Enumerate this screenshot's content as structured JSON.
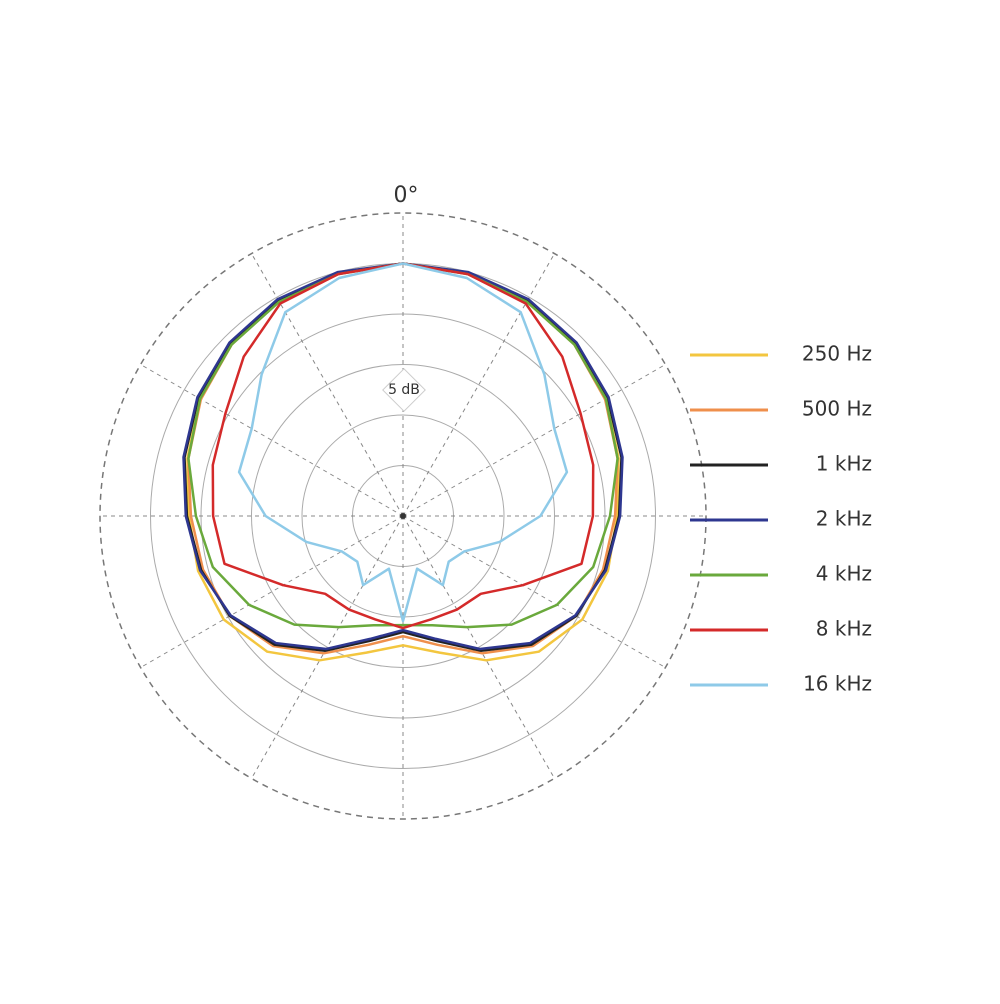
{
  "chart_data": {
    "type": "polar",
    "theta_label": "0°",
    "scale_label": "5 dB",
    "theta": [
      0,
      15,
      30,
      45,
      60,
      75,
      90,
      105,
      120,
      135,
      150,
      165,
      180,
      195,
      210,
      225,
      240,
      255,
      270,
      285,
      300,
      315,
      330,
      345
    ],
    "thetaticks": [
      0,
      30,
      60,
      90,
      120,
      150,
      180,
      210,
      240,
      270,
      300,
      330
    ],
    "rlim": [
      -25,
      5
    ],
    "rticks": [
      -20,
      -15,
      -10,
      -5,
      0,
      5
    ],
    "series": [
      {
        "name": "250 Hz",
        "color": "#f3c63f",
        "values": [
          0,
          -0.1,
          -0.4,
          -1.0,
          -1.8,
          -2.9,
          -3.8,
          -4.0,
          -4.5,
          -6.0,
          -8.5,
          -11.0,
          -12.2,
          -11.0,
          -8.5,
          -6.0,
          -4.5,
          -4.0,
          -3.8,
          -2.9,
          -1.8,
          -1.0,
          -0.4,
          -0.1
        ]
      },
      {
        "name": "500 Hz",
        "color": "#ef8f4c",
        "values": [
          0,
          -0.1,
          -0.4,
          -1.0,
          -1.9,
          -3.0,
          -4.0,
          -4.5,
          -5.2,
          -6.8,
          -9.3,
          -11.8,
          -13.1,
          -11.8,
          -9.3,
          -6.8,
          -5.2,
          -4.5,
          -4.0,
          -3.0,
          -1.9,
          -1.0,
          -0.4,
          -0.1
        ]
      },
      {
        "name": "1 kHz",
        "color": "#222222",
        "values": [
          0,
          -0.1,
          -0.3,
          -0.8,
          -1.6,
          -2.6,
          -3.6,
          -4.3,
          -5.2,
          -7.0,
          -9.6,
          -12.2,
          -13.5,
          -12.2,
          -9.6,
          -7.0,
          -5.2,
          -4.3,
          -3.6,
          -2.6,
          -1.6,
          -0.8,
          -0.3,
          -0.1
        ]
      },
      {
        "name": "2 kHz",
        "color": "#2e3790",
        "values": [
          0,
          0,
          -0.2,
          -0.7,
          -1.5,
          -2.5,
          -3.5,
          -4.2,
          -5.3,
          -7.2,
          -9.8,
          -12.4,
          -13.7,
          -12.4,
          -9.8,
          -7.2,
          -5.3,
          -4.2,
          -3.5,
          -2.5,
          -1.5,
          -0.7,
          -0.2,
          0
        ]
      },
      {
        "name": "4 kHz",
        "color": "#6aa93c",
        "values": [
          0,
          -0.2,
          -0.5,
          -1.0,
          -1.8,
          -3.0,
          -4.5,
          -5.5,
          -7.4,
          -9.8,
          -12.3,
          -13.8,
          -14.2,
          -13.8,
          -12.3,
          -9.8,
          -7.4,
          -5.5,
          -4.5,
          -3.0,
          -1.8,
          -1.0,
          -0.5,
          -0.2
        ]
      },
      {
        "name": "8 kHz",
        "color": "#d42a2a",
        "values": [
          0,
          -0.2,
          -0.7,
          -2.7,
          -4.7,
          -5.5,
          -6.2,
          -6.7,
          -11.3,
          -14.1,
          -14.3,
          -14.4,
          -13.9,
          -14.4,
          -14.3,
          -14.1,
          -11.3,
          -6.7,
          -6.2,
          -5.5,
          -4.7,
          -2.7,
          -0.7,
          -0.2
        ]
      },
      {
        "name": "16 kHz",
        "color": "#8ecae8",
        "values": [
          0,
          -0.6,
          -1.7,
          -5.2,
          -7.7,
          -8.2,
          -11.4,
          -15.1,
          -18.0,
          -18.6,
          -17.1,
          -19.6,
          -14.6,
          -19.6,
          -17.1,
          -18.6,
          -18.0,
          -15.1,
          -11.4,
          -8.2,
          -7.7,
          -5.2,
          -1.7,
          -0.6
        ]
      }
    ]
  }
}
